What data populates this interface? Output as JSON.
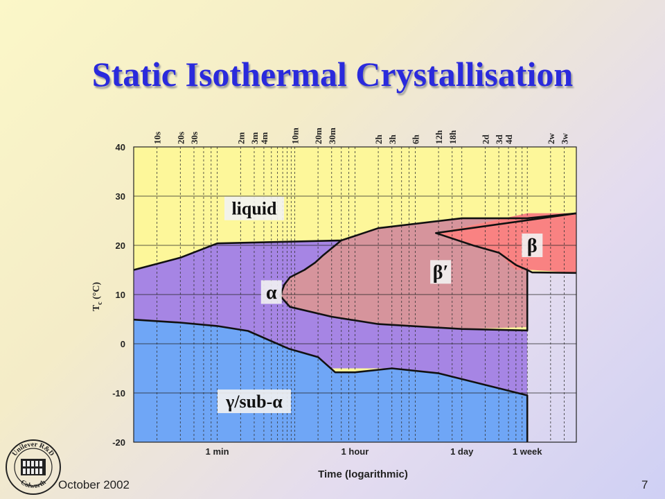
{
  "slide": {
    "title": "Static Isothermal Crystallisation",
    "footer_date": "October 2002",
    "page_number": "7",
    "logo_text_top": "Unilever R&D",
    "logo_text_bottom": "Colworth"
  },
  "colors": {
    "title": "#2a2adc",
    "liquid": "#fdf79a",
    "alpha": "#a685e4",
    "gamma_sub_alpha": "#6fa6f6",
    "beta_prime": "#d6949c",
    "beta": "#f98282",
    "label_bg": "#f2f2f2"
  },
  "chart_data": {
    "type": "area",
    "title": "",
    "xlabel": "Time (logarithmic)",
    "ylabel": "Tc (°C)",
    "ylabel_main": "T",
    "ylabel_sub": "c",
    "ylabel_rest": " (°C)",
    "x_scale": "log",
    "x_unit": "seconds",
    "xlim": [
      5,
      2600000
    ],
    "ylim": [
      -20,
      40
    ],
    "y_ticks": [
      40,
      30,
      20,
      10,
      0,
      -10,
      -20
    ],
    "y_tick_labels": [
      "40",
      "30",
      "20",
      "10",
      "0",
      "-10",
      "-20"
    ],
    "x_ticks": [
      {
        "label": "1 min",
        "seconds": 60
      },
      {
        "label": "1 hour",
        "seconds": 3600
      },
      {
        "label": "1 day",
        "seconds": 86400
      },
      {
        "label": "1 week",
        "seconds": 604800
      }
    ],
    "top_time_labels": [
      {
        "label": "10s",
        "seconds": 10
      },
      {
        "label": "20s",
        "seconds": 20
      },
      {
        "label": "30s",
        "seconds": 30
      },
      {
        "label": "2m",
        "seconds": 120
      },
      {
        "label": "3m",
        "seconds": 180
      },
      {
        "label": "4m",
        "seconds": 240
      },
      {
        "label": "10m",
        "seconds": 600
      },
      {
        "label": "20m",
        "seconds": 1200
      },
      {
        "label": "30m",
        "seconds": 1800
      },
      {
        "label": "2h",
        "seconds": 7200
      },
      {
        "label": "3h",
        "seconds": 10800
      },
      {
        "label": "6h",
        "seconds": 21600
      },
      {
        "label": "12h",
        "seconds": 43200
      },
      {
        "label": "18h",
        "seconds": 64800
      },
      {
        "label": "2d",
        "seconds": 172800
      },
      {
        "label": "3d",
        "seconds": 259200
      },
      {
        "label": "4d",
        "seconds": 345600
      },
      {
        "label": "2w",
        "seconds": 1209600
      },
      {
        "label": "3w",
        "seconds": 1814400
      }
    ],
    "gridlines_seconds": [
      10,
      20,
      30,
      40,
      50,
      60,
      120,
      180,
      240,
      300,
      360,
      420,
      480,
      540,
      600,
      1200,
      1800,
      2400,
      3000,
      3600,
      7200,
      10800,
      14400,
      18000,
      21600,
      43200,
      64800,
      86400,
      172800,
      259200,
      345600,
      432000,
      518400,
      604800,
      1209600,
      1814400
    ],
    "regions": [
      {
        "name": "liquid",
        "label": "liquid",
        "color": "#fdf79a",
        "label_at": {
          "seconds": 180,
          "temp": 27.5
        },
        "polygon": [
          [
            5,
            40
          ],
          [
            2600000,
            40
          ],
          [
            2600000,
            14.5
          ],
          [
            604800,
            14.7
          ],
          [
            604800,
            -20
          ],
          [
            5,
            -20
          ]
        ]
      },
      {
        "name": "alpha",
        "label": "α",
        "color": "#a685e4",
        "label_at": {
          "seconds": 300,
          "temp": 10.5
        },
        "polygon": [
          [
            5,
            15
          ],
          [
            20,
            17.5
          ],
          [
            60,
            20.4
          ],
          [
            2400,
            21
          ],
          [
            1400,
            18
          ],
          [
            1100,
            16.5
          ],
          [
            800,
            15
          ],
          [
            520,
            13.5
          ],
          [
            440,
            12
          ],
          [
            390,
            9.7
          ],
          [
            520,
            7.5
          ],
          [
            1800,
            5.5
          ],
          [
            7200,
            4
          ],
          [
            86400,
            3
          ],
          [
            604800,
            2.7
          ],
          [
            604800,
            -10.5
          ],
          [
            43200,
            -6
          ],
          [
            10800,
            -5
          ],
          [
            5,
            -5
          ]
        ]
      },
      {
        "name": "gamma_sub_alpha",
        "label": "γ/sub-α",
        "color": "#6fa6f6",
        "label_at": {
          "seconds": 180,
          "temp": -11.7
        },
        "polygon": [
          [
            5,
            4.9
          ],
          [
            20,
            4.3
          ],
          [
            60,
            3.6
          ],
          [
            150,
            2.6
          ],
          [
            500,
            -1
          ],
          [
            1200,
            -2.7
          ],
          [
            2000,
            -5.8
          ],
          [
            3600,
            -5.8
          ],
          [
            10800,
            -5
          ],
          [
            43200,
            -6
          ],
          [
            604800,
            -10.5
          ],
          [
            604800,
            -20
          ],
          [
            5,
            -20
          ]
        ]
      },
      {
        "name": "beta_prime",
        "label": "β′",
        "color": "#d6949c",
        "label_at": {
          "seconds": 46000,
          "temp": 14.6
        },
        "polygon": [
          [
            2400,
            21
          ],
          [
            7200,
            23.5
          ],
          [
            86400,
            25.5
          ],
          [
            604800,
            25.5
          ],
          [
            2600000,
            26.5
          ],
          [
            604800,
            26.5
          ],
          [
            40000,
            22.5
          ],
          [
            120000,
            20
          ],
          [
            259200,
            18.5
          ],
          [
            432000,
            16
          ],
          [
            604800,
            15
          ],
          [
            604800,
            3.4
          ],
          [
            86400,
            3
          ],
          [
            7200,
            4
          ],
          [
            1800,
            5.5
          ],
          [
            520,
            7.5
          ],
          [
            390,
            9.7
          ],
          [
            440,
            12
          ],
          [
            520,
            13.5
          ],
          [
            800,
            15
          ],
          [
            1100,
            16.5
          ],
          [
            1400,
            18
          ]
        ]
      },
      {
        "name": "beta",
        "label": "β",
        "color": "#f98282",
        "label_at": {
          "seconds": 700000,
          "temp": 20
        },
        "polygon": [
          [
            40000,
            22.5
          ],
          [
            604800,
            26.5
          ],
          [
            2600000,
            26.5
          ],
          [
            2600000,
            14.4
          ],
          [
            700000,
            15
          ],
          [
            430000,
            15
          ],
          [
            259200,
            18.5
          ],
          [
            120000,
            20
          ]
        ]
      }
    ],
    "boundaries": [
      [
        [
          5,
          15
        ],
        [
          20,
          17.5
        ],
        [
          60,
          20.4
        ],
        [
          2400,
          21
        ],
        [
          7200,
          23.5
        ],
        [
          86400,
          25.5
        ],
        [
          604800,
          25.5
        ],
        [
          2600000,
          26.5
        ]
      ],
      [
        [
          5,
          4.9
        ],
        [
          20,
          4.3
        ],
        [
          60,
          3.6
        ],
        [
          150,
          2.6
        ],
        [
          500,
          -1
        ],
        [
          1200,
          -2.7
        ],
        [
          2000,
          -5.8
        ],
        [
          3600,
          -5.8
        ],
        [
          10800,
          -5
        ],
        [
          43200,
          -6
        ],
        [
          604800,
          -10.5
        ],
        [
          604800,
          -20
        ]
      ],
      [
        [
          2400,
          21
        ],
        [
          1400,
          18
        ],
        [
          1100,
          16.5
        ],
        [
          800,
          15
        ],
        [
          520,
          13.5
        ],
        [
          440,
          12
        ],
        [
          390,
          9.7
        ],
        [
          520,
          7.5
        ],
        [
          1800,
          5.5
        ],
        [
          7200,
          4
        ],
        [
          86400,
          3
        ],
        [
          604800,
          2.7
        ],
        [
          604800,
          15
        ]
      ],
      [
        [
          604800,
          15
        ],
        [
          700000,
          14.5
        ],
        [
          2600000,
          14.4
        ]
      ],
      [
        [
          2600000,
          26.5
        ],
        [
          40000,
          22.5
        ],
        [
          120000,
          20
        ],
        [
          259200,
          18.5
        ],
        [
          432000,
          16
        ],
        [
          604800,
          15
        ]
      ]
    ]
  }
}
